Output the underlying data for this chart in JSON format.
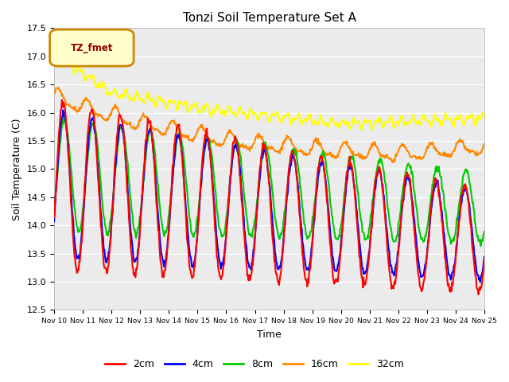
{
  "title": "Tonzi Soil Temperature Set A",
  "xlabel": "Time",
  "ylabel": "Soil Temperature (C)",
  "ylim": [
    12.5,
    17.5
  ],
  "yticks": [
    12.5,
    13.0,
    13.5,
    14.0,
    14.5,
    15.0,
    15.5,
    16.0,
    16.5,
    17.0,
    17.5
  ],
  "colors": {
    "2cm": "#ff0000",
    "4cm": "#0000ff",
    "8cm": "#00cc00",
    "16cm": "#ff8800",
    "32cm": "#ffff00"
  },
  "legend_label": "TZ_fmet",
  "legend_bg": "#ffffcc",
  "legend_border": "#cc8800",
  "bg_color": "#ebebeb",
  "x_tick_labels": [
    "Nov 10",
    "Nov 11",
    "Nov 12",
    "Nov 13",
    "Nov 14",
    "Nov 15",
    "Nov 16",
    "Nov 17",
    "Nov 18",
    "Nov 19",
    "Nov 20",
    "Nov 21",
    "Nov 22",
    "Nov 23",
    "Nov 24",
    "Nov 25"
  ]
}
